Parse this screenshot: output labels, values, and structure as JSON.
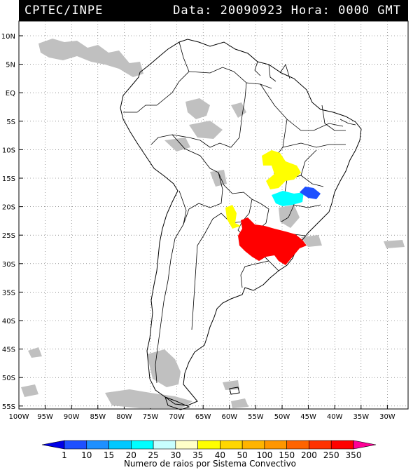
{
  "header": {
    "source": "CPTEC/INPE",
    "datetime": "Data: 20090923 Hora: 0000 GMT"
  },
  "map": {
    "region": "South America",
    "lat_labels": [
      "10N",
      "5N",
      "EQ",
      "5S",
      "10S",
      "15S",
      "20S",
      "25S",
      "30S",
      "35S",
      "40S",
      "45S",
      "50S",
      "55S"
    ],
    "lon_labels": [
      "100W",
      "95W",
      "90W",
      "85W",
      "80W",
      "75W",
      "70W",
      "65W",
      "60W",
      "55W",
      "50W",
      "45W",
      "40W",
      "35W",
      "30W"
    ],
    "grid": "dotted"
  },
  "legend": {
    "title": "Numero de raios por Sistema Convectivo",
    "bins": [
      "1",
      "10",
      "15",
      "20",
      "25",
      "30",
      "35",
      "40",
      "50",
      "100",
      "150",
      "200",
      "250",
      "350"
    ],
    "colors": [
      "#0000e6",
      "#1e50ff",
      "#1e90ff",
      "#00c8ff",
      "#00ffff",
      "#c8ffff",
      "#ffffc8",
      "#ffff00",
      "#ffd700",
      "#ffb400",
      "#ff9600",
      "#ff6400",
      "#ff3200",
      "#ff0000",
      "#ff0096"
    ]
  },
  "colors": {
    "cloud": "#c0c0c0",
    "coast": "#000000"
  }
}
